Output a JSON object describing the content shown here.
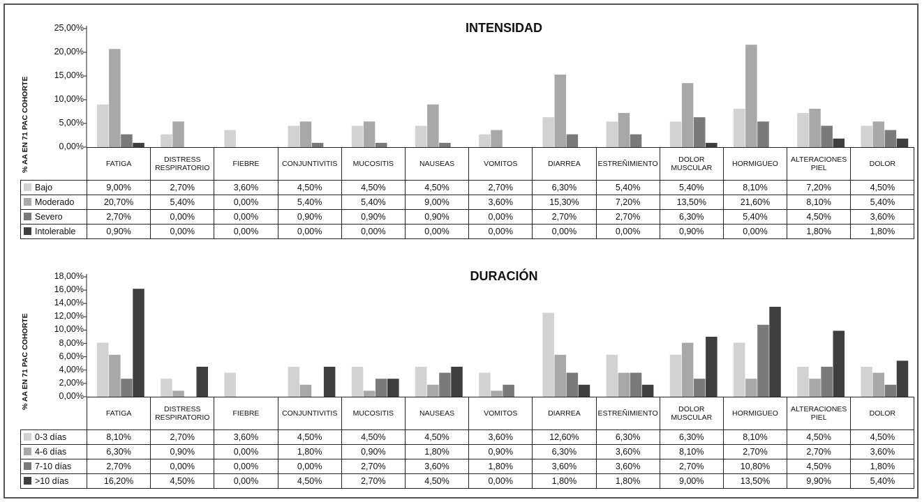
{
  "chart_data": [
    {
      "type": "bar",
      "title": "INTENSIDAD",
      "ylabel": "% AA EN 71 PAC COHORTE",
      "ylim": [
        0,
        25
      ],
      "yticks": [
        "0,00%",
        "5,00%",
        "10,00%",
        "15,00%",
        "20,00%",
        "25,00%"
      ],
      "categories": [
        "FATIGA",
        "DISTRESS RESPIRATORIO",
        "FIEBRE",
        "CONJUNTIVITIS",
        "MUCOSITIS",
        "NAUSEAS",
        "VOMITOS",
        "DIARREA",
        "ESTREÑIMIENTO",
        "DOLOR MUSCULAR",
        "HORMIGUEO",
        "ALTERACIONES PIEL",
        "DOLOR"
      ],
      "series": [
        {
          "name": "Bajo",
          "color": "#d2d2d2",
          "values": [
            9.0,
            2.7,
            3.6,
            4.5,
            4.5,
            4.5,
            2.7,
            6.3,
            5.4,
            5.4,
            8.1,
            7.2,
            4.5
          ],
          "labels": [
            "9,00%",
            "2,70%",
            "3,60%",
            "4,50%",
            "4,50%",
            "4,50%",
            "2,70%",
            "6,30%",
            "5,40%",
            "5,40%",
            "8,10%",
            "7,20%",
            "4,50%"
          ]
        },
        {
          "name": "Moderado",
          "color": "#a8a8a8",
          "values": [
            20.7,
            5.4,
            0.0,
            5.4,
            5.4,
            9.0,
            3.6,
            15.3,
            7.2,
            13.5,
            21.6,
            8.1,
            5.4
          ],
          "labels": [
            "20,70%",
            "5,40%",
            "0,00%",
            "5,40%",
            "5,40%",
            "9,00%",
            "3,60%",
            "15,30%",
            "7,20%",
            "13,50%",
            "21,60%",
            "8,10%",
            "5,40%"
          ]
        },
        {
          "name": "Severo",
          "color": "#7a7a7a",
          "values": [
            2.7,
            0.0,
            0.0,
            0.9,
            0.9,
            0.9,
            0.0,
            2.7,
            2.7,
            6.3,
            5.4,
            4.5,
            3.6
          ],
          "labels": [
            "2,70%",
            "0,00%",
            "0,00%",
            "0,90%",
            "0,90%",
            "0,90%",
            "0,00%",
            "2,70%",
            "2,70%",
            "6,30%",
            "5,40%",
            "4,50%",
            "3,60%"
          ]
        },
        {
          "name": "Intolerable",
          "color": "#3e3e3e",
          "values": [
            0.9,
            0.0,
            0.0,
            0.0,
            0.0,
            0.0,
            0.0,
            0.0,
            0.0,
            0.9,
            0.0,
            1.8,
            1.8
          ],
          "labels": [
            "0,90%",
            "0,00%",
            "0,00%",
            "0,00%",
            "0,00%",
            "0,00%",
            "0,00%",
            "0,00%",
            "0,00%",
            "0,90%",
            "0,00%",
            "1,80%",
            "1,80%"
          ]
        }
      ]
    },
    {
      "type": "bar",
      "title": "DURACIÓN",
      "ylabel": "% AA EN 71 PAC COHORTE",
      "ylim": [
        0,
        18
      ],
      "yticks": [
        "0,00%",
        "2,00%",
        "4,00%",
        "6,00%",
        "8,00%",
        "10,00%",
        "12,00%",
        "14,00%",
        "16,00%",
        "18,00%"
      ],
      "categories": [
        "FATIGA",
        "DISTRESS RESPIRATORIO",
        "FIEBRE",
        "CONJUNTIVITIS",
        "MUCOSITIS",
        "NAUSEAS",
        "VOMITOS",
        "DIARREA",
        "ESTREÑIMIENTO",
        "DOLOR MUSCULAR",
        "HORMIGUEO",
        "ALTERACIONES PIEL",
        "DOLOR"
      ],
      "series": [
        {
          "name": "0-3 días",
          "color": "#d2d2d2",
          "values": [
            8.1,
            2.7,
            3.6,
            4.5,
            4.5,
            4.5,
            3.6,
            12.6,
            6.3,
            6.3,
            8.1,
            4.5,
            4.5
          ],
          "labels": [
            "8,10%",
            "2,70%",
            "3,60%",
            "4,50%",
            "4,50%",
            "4,50%",
            "3,60%",
            "12,60%",
            "6,30%",
            "6,30%",
            "8,10%",
            "4,50%",
            "4,50%"
          ]
        },
        {
          "name": "4-6 días",
          "color": "#a8a8a8",
          "values": [
            6.3,
            0.9,
            0.0,
            1.8,
            0.9,
            1.8,
            0.9,
            6.3,
            3.6,
            8.1,
            2.7,
            2.7,
            3.6
          ],
          "labels": [
            "6,30%",
            "0,90%",
            "0,00%",
            "1,80%",
            "0,90%",
            "1,80%",
            "0,90%",
            "6,30%",
            "3,60%",
            "8,10%",
            "2,70%",
            "2,70%",
            "3,60%"
          ]
        },
        {
          "name": "7-10 días",
          "color": "#7a7a7a",
          "values": [
            2.7,
            0.0,
            0.0,
            0.0,
            2.7,
            3.6,
            1.8,
            3.6,
            3.6,
            2.7,
            10.8,
            4.5,
            1.8
          ],
          "labels": [
            "2,70%",
            "0,00%",
            "0,00%",
            "0,00%",
            "2,70%",
            "3,60%",
            "1,80%",
            "3,60%",
            "3,60%",
            "2,70%",
            "10,80%",
            "4,50%",
            "1,80%"
          ]
        },
        {
          "name": ">10 días",
          "color": "#3e3e3e",
          "values": [
            16.2,
            4.5,
            0.0,
            4.5,
            2.7,
            4.5,
            0.0,
            1.8,
            1.8,
            9.0,
            13.5,
            9.9,
            5.4
          ],
          "labels": [
            "16,20%",
            "4,50%",
            "0,00%",
            "4,50%",
            "2,70%",
            "4,50%",
            "0,00%",
            "1,80%",
            "1,80%",
            "9,00%",
            "13,50%",
            "9,90%",
            "5,40%"
          ]
        }
      ]
    }
  ]
}
